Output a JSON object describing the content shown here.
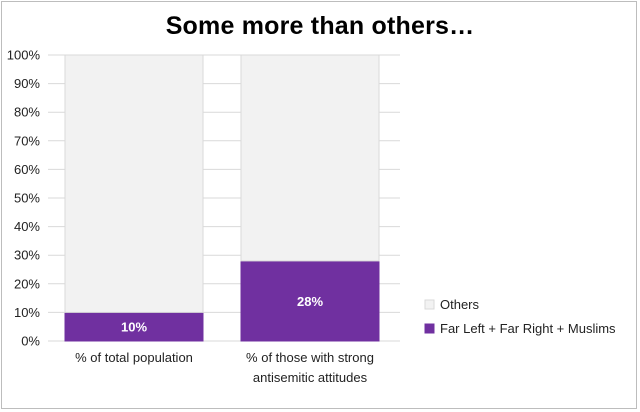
{
  "chart_data": {
    "type": "bar",
    "stacked": true,
    "title": "Some more than others…",
    "categories": [
      "% of total population",
      "% of those with strong antisemitic attitudes"
    ],
    "category_lines": [
      [
        "% of total population"
      ],
      [
        "% of those with strong",
        "antisemitic attitudes"
      ]
    ],
    "series": [
      {
        "name": "Far Left + Far Right + Muslims",
        "values": [
          10,
          28
        ],
        "color": "#7030a0",
        "labels": [
          "10%",
          "28%"
        ]
      },
      {
        "name": "Others",
        "values": [
          90,
          72
        ],
        "color": "#f2f2f2"
      }
    ],
    "yticks": [
      "0%",
      "10%",
      "20%",
      "30%",
      "40%",
      "50%",
      "60%",
      "70%",
      "80%",
      "90%",
      "100%"
    ],
    "ylim": [
      0,
      100
    ],
    "grid": true,
    "legend": "right",
    "colors": {
      "accent": "#7030a0",
      "others": "#f2f2f2",
      "others_border": "#d9d9d9",
      "grid": "#d9d9d9"
    }
  }
}
